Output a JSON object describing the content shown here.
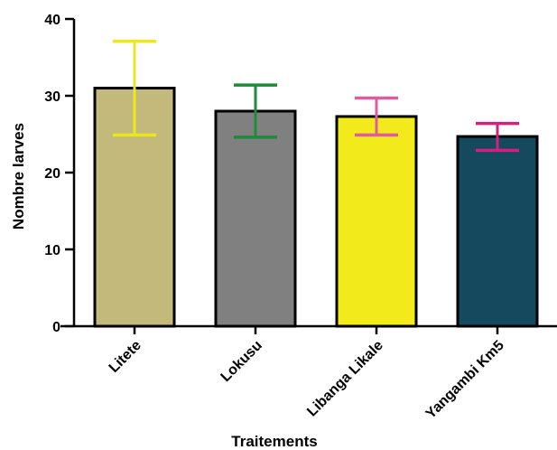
{
  "chart_data": {
    "type": "bar",
    "title": "",
    "xlabel": "Traitements",
    "ylabel": "Nombre larves",
    "ylim": [
      0,
      40
    ],
    "yticks": [
      0,
      10,
      20,
      30,
      40
    ],
    "categories": [
      "Litete",
      "Lokusu",
      "Libanga Likale",
      "Yangambi Km5"
    ],
    "values": [
      31.0,
      28.0,
      27.3,
      24.7
    ],
    "error_upper": [
      37.1,
      31.4,
      29.7,
      26.4
    ],
    "error_lower": [
      24.9,
      24.6,
      24.9,
      22.9
    ],
    "bar_colors": [
      "#c2b97a",
      "#808080",
      "#f2ea1b",
      "#14495e"
    ],
    "error_colors": [
      "#ece61c",
      "#1f8a3c",
      "#e05aa4",
      "#d31f7d"
    ],
    "grid": false,
    "legend": "none"
  }
}
